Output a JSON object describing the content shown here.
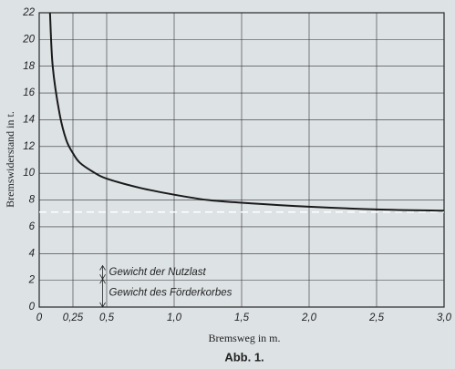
{
  "chart_data": {
    "type": "line",
    "x_label": "Bremsweg in m.",
    "y_label": "Bremswiderstand in t.",
    "caption": "Abb. 1.",
    "xlim": [
      0,
      3.0
    ],
    "ylim": [
      0,
      22
    ],
    "xticks": [
      0,
      {
        "value": 0.25,
        "label": "0,25"
      },
      {
        "value": 0.5,
        "label": "0,5"
      },
      {
        "value": 1.0,
        "label": "1,0"
      },
      {
        "value": 1.5,
        "label": "1,5"
      },
      {
        "value": 2.0,
        "label": "2,0"
      },
      {
        "value": 2.5,
        "label": "2,5"
      },
      {
        "value": 3.0,
        "label": "3,0"
      }
    ],
    "yticks": [
      0,
      2,
      4,
      6,
      8,
      10,
      12,
      14,
      16,
      18,
      20,
      22
    ],
    "grid": true,
    "series": [
      {
        "color": "#1a1a1a",
        "x": [
          0.08,
          0.1,
          0.15,
          0.2,
          0.25,
          0.3,
          0.4,
          0.5,
          0.75,
          1.0,
          1.25,
          1.5,
          2.0,
          2.5,
          3.0
        ],
        "values": [
          22,
          18,
          14.5,
          12.5,
          11.5,
          10.8,
          10.1,
          9.6,
          8.9,
          8.4,
          8.0,
          7.8,
          7.5,
          7.3,
          7.2
        ]
      }
    ],
    "reference_line": 7.1,
    "annotations": [
      {
        "text": "Gewicht der Nutzlast",
        "from": 2.1,
        "to": 3.1
      },
      {
        "text": "Gewicht des Förderkorbes",
        "from": 0,
        "to": 2.1
      }
    ]
  }
}
